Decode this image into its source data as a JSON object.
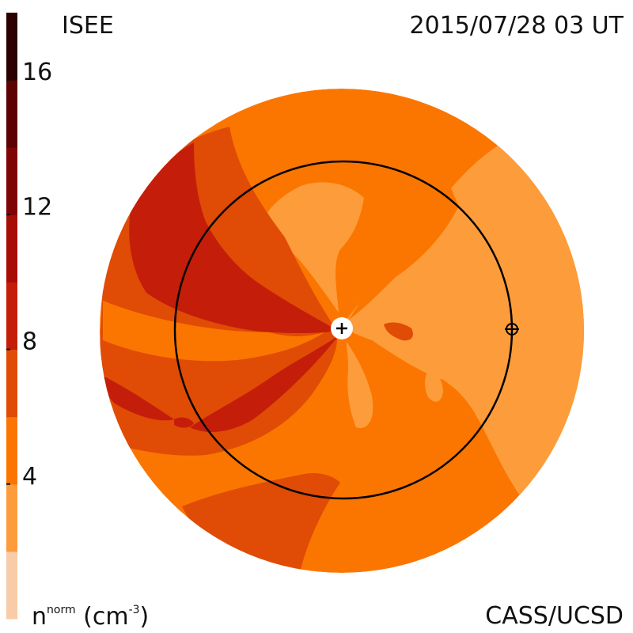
{
  "header": {
    "instrument": "ISEE",
    "timestamp": "2015/07/28 03 UT",
    "credit": "CASS/UCSD"
  },
  "chart_data": {
    "type": "heatmap",
    "title": "",
    "quantity": "n",
    "quantity_superscript": "norm",
    "unit_open": "(cm",
    "unit_exponent": "-3",
    "unit_close": ")",
    "colorbar": {
      "range": [
        0,
        18
      ],
      "ticks": [
        4,
        8,
        12,
        16
      ],
      "tick_labels": [
        "4",
        "8",
        "12",
        "16"
      ],
      "levels": [
        {
          "from": 0,
          "to": 2,
          "color": "#f8cca8"
        },
        {
          "from": 2,
          "to": 4,
          "color": "#fd9c3a"
        },
        {
          "from": 4,
          "to": 6,
          "color": "#fb7600"
        },
        {
          "from": 6,
          "to": 8,
          "color": "#e04b06"
        },
        {
          "from": 8,
          "to": 10,
          "color": "#c41e0a"
        },
        {
          "from": 10,
          "to": 12,
          "color": "#a80c06"
        },
        {
          "from": 12,
          "to": 14,
          "color": "#800404"
        },
        {
          "from": 14,
          "to": 16,
          "color": "#5c0202"
        },
        {
          "from": 16,
          "to": 18,
          "color": "#2c0000"
        }
      ]
    },
    "markers": [
      {
        "name": "Sun",
        "symbol": "plus-in-white-disk"
      },
      {
        "name": "Earth",
        "symbol": "circle-cross"
      }
    ],
    "orbit": {
      "name": "Earth orbit",
      "shape": "circle"
    }
  }
}
